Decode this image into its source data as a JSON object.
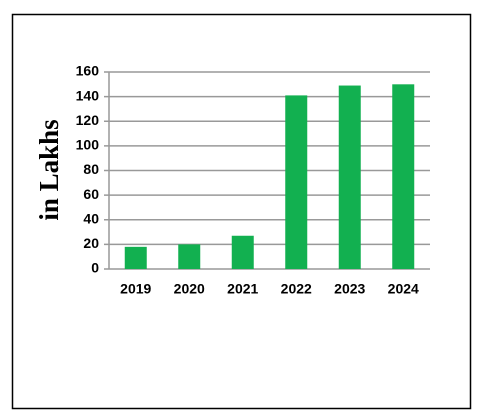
{
  "chart_data": {
    "type": "bar",
    "y_label": "in Lakhs",
    "categories": [
      "2019",
      "2020",
      "2021",
      "2022",
      "2023",
      "2024"
    ],
    "values": [
      18,
      20,
      27,
      141,
      149,
      150
    ],
    "color": "#12b050",
    "ylim": [
      0,
      160
    ],
    "yticks": [
      0,
      20,
      40,
      60,
      80,
      100,
      120,
      140,
      160
    ],
    "grid": true
  }
}
